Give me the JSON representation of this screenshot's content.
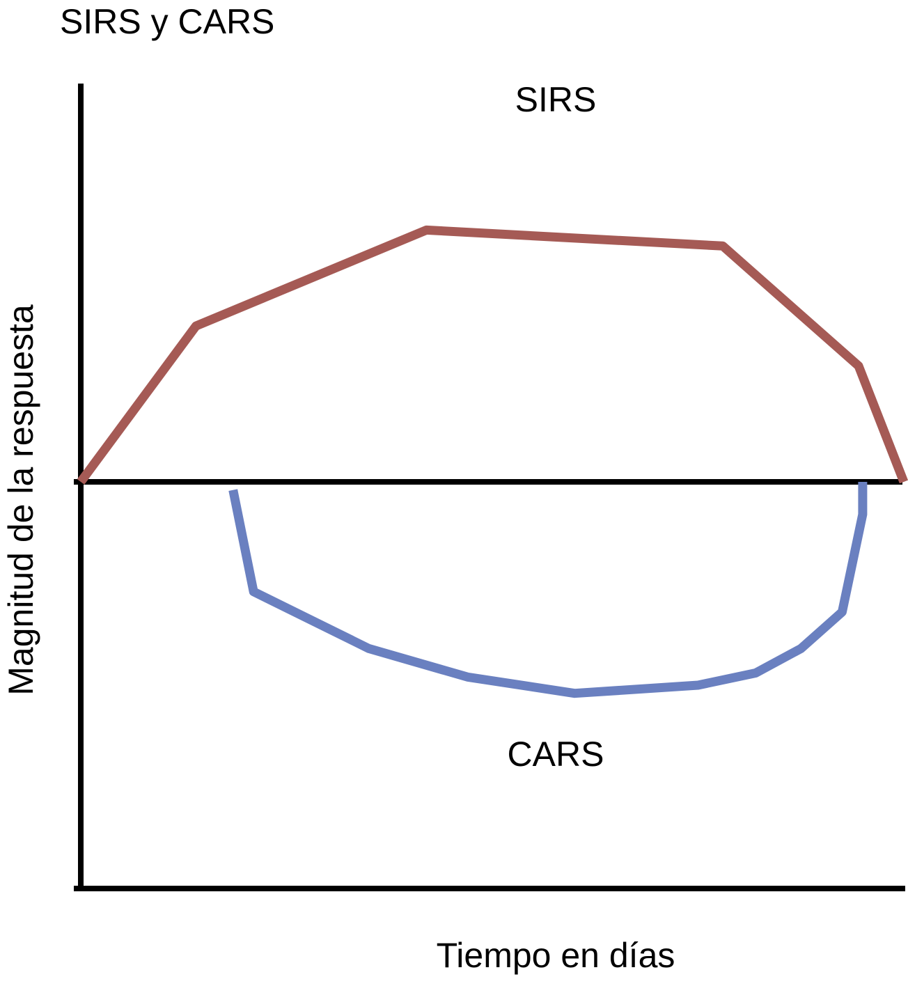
{
  "chart_data": {
    "type": "line",
    "title": "SIRS y CARS",
    "xlabel": "Tiempo en días",
    "ylabel": "Magnitud de la respuesta",
    "xlim": [
      0,
      10
    ],
    "ylim": [
      -10,
      10
    ],
    "grid": false,
    "legend": "none",
    "series": [
      {
        "name": "SIRS",
        "color": "#a55a55",
        "x": [
          0,
          1.4,
          4.2,
          7.8,
          9.45,
          10
        ],
        "y": [
          0,
          3.9,
          6.3,
          5.9,
          2.9,
          0
        ]
      },
      {
        "name": "CARS",
        "color": "#6a80c0",
        "x": [
          1.85,
          2.1,
          3.5,
          4.7,
          6.0,
          7.5,
          8.2,
          8.75,
          9.25,
          9.5,
          9.5
        ],
        "y": [
          -0.2,
          -2.7,
          -4.1,
          -4.8,
          -5.2,
          -5.0,
          -4.7,
          -4.1,
          -3.2,
          -0.8,
          0
        ]
      }
    ]
  }
}
